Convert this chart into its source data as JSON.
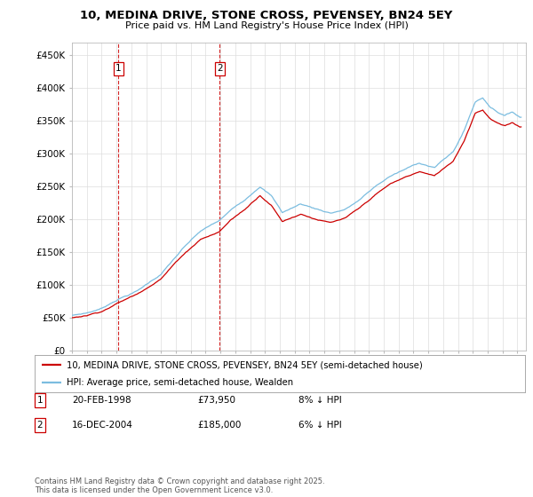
{
  "title": "10, MEDINA DRIVE, STONE CROSS, PEVENSEY, BN24 5EY",
  "subtitle": "Price paid vs. HM Land Registry's House Price Index (HPI)",
  "ylim": [
    0,
    470000
  ],
  "yticks": [
    0,
    50000,
    100000,
    150000,
    200000,
    250000,
    300000,
    350000,
    400000,
    450000
  ],
  "ytick_labels": [
    "£0",
    "£50K",
    "£100K",
    "£150K",
    "£200K",
    "£250K",
    "£300K",
    "£350K",
    "£400K",
    "£450K"
  ],
  "hpi_color": "#7bbde0",
  "price_color": "#cc0000",
  "legend1": "10, MEDINA DRIVE, STONE CROSS, PEVENSEY, BN24 5EY (semi-detached house)",
  "legend2": "HPI: Average price, semi-detached house, Wealden",
  "annotation1_num": "1",
  "annotation1_date": "20-FEB-1998",
  "annotation1_price": "£73,950",
  "annotation1_hpi": "8% ↓ HPI",
  "annotation2_num": "2",
  "annotation2_date": "16-DEC-2004",
  "annotation2_price": "£185,000",
  "annotation2_hpi": "6% ↓ HPI",
  "footer": "Contains HM Land Registry data © Crown copyright and database right 2025.\nThis data is licensed under the Open Government Licence v3.0.",
  "background_color": "#ffffff",
  "grid_color": "#dddddd"
}
